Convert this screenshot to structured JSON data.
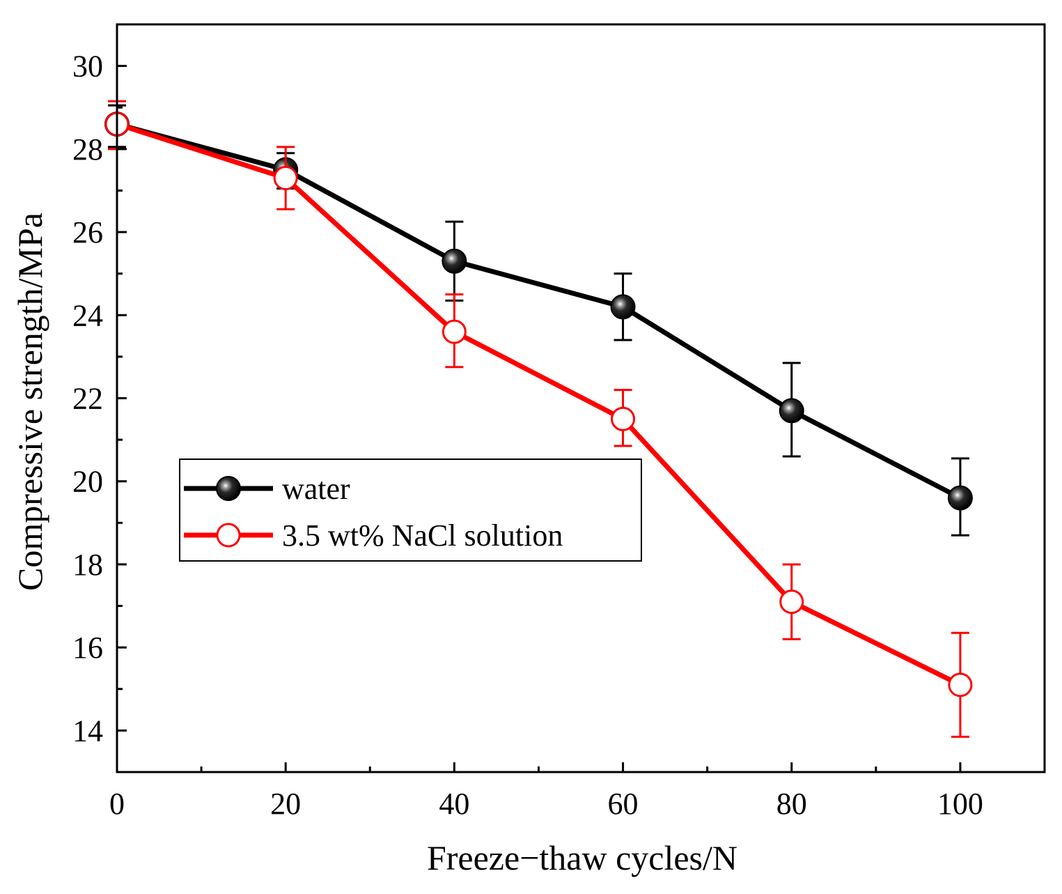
{
  "chart_data": {
    "type": "line",
    "title": "",
    "xlabel": "Freeze−thaw cycles/N",
    "ylabel": "Compressive strength/MPa",
    "xlim": [
      0,
      110
    ],
    "ylim": [
      13,
      31
    ],
    "x_ticks": [
      0,
      20,
      40,
      60,
      80,
      100
    ],
    "x_tick_labels": [
      "0",
      "20",
      "40",
      "60",
      "80",
      "100"
    ],
    "y_ticks": [
      14,
      16,
      18,
      20,
      22,
      24,
      26,
      28,
      30
    ],
    "y_tick_labels": [
      "14",
      "16",
      "18",
      "20",
      "22",
      "24",
      "26",
      "28",
      "30"
    ],
    "grid": false,
    "legend_position": "middle-left",
    "series": [
      {
        "name": "water",
        "color": "#000000",
        "marker": "filled-sphere",
        "x": [
          0,
          20,
          40,
          60,
          80,
          100
        ],
        "y": [
          28.6,
          27.5,
          25.3,
          24.2,
          21.7,
          19.6
        ],
        "err_low": [
          28.05,
          27.05,
          24.35,
          23.4,
          20.6,
          18.7
        ],
        "err_high": [
          29.05,
          27.9,
          26.25,
          25.0,
          22.85,
          20.55
        ]
      },
      {
        "name": "3.5 wt% NaCl solution",
        "color": "#ff0000",
        "marker": "open-circle",
        "x": [
          0,
          20,
          40,
          60,
          80,
          100
        ],
        "y": [
          28.6,
          27.3,
          23.6,
          21.5,
          17.1,
          15.1
        ],
        "err_low": [
          28.0,
          26.55,
          22.75,
          20.85,
          16.2,
          13.85
        ],
        "err_high": [
          29.15,
          28.05,
          24.5,
          22.2,
          18.0,
          16.35
        ]
      }
    ]
  }
}
